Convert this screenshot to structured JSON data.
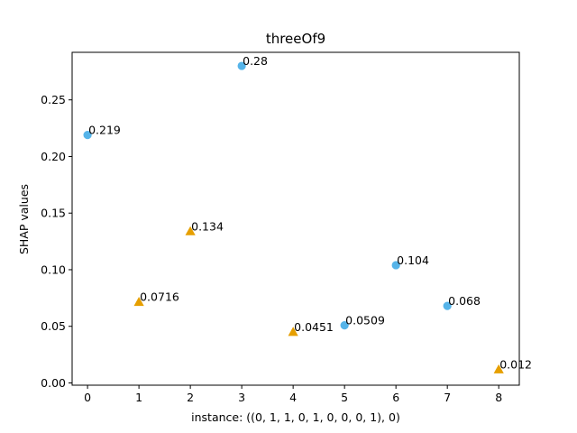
{
  "chart_data": {
    "type": "scatter",
    "title": "threeOf9",
    "xlabel": "instance: ((0, 1, 1, 0, 1, 0, 0, 0, 1), 0)",
    "ylabel": "SHAP values",
    "xlim": [
      -0.3,
      8.4
    ],
    "ylim": [
      -0.002,
      0.292
    ],
    "xticks": [
      0,
      1,
      2,
      3,
      4,
      5,
      6,
      7,
      8
    ],
    "yticks": [
      0.0,
      0.05,
      0.1,
      0.15,
      0.2,
      0.25
    ],
    "ytick_labels": [
      "0.00",
      "0.05",
      "0.10",
      "0.15",
      "0.20",
      "0.25"
    ],
    "grid": false,
    "points": [
      {
        "x": 0,
        "y": 0.219,
        "label": "0.219",
        "marker": "circle",
        "color": "#56b4e9"
      },
      {
        "x": 1,
        "y": 0.0716,
        "label": "0.0716",
        "marker": "triangle",
        "color": "#e69f00"
      },
      {
        "x": 2,
        "y": 0.134,
        "label": "0.134",
        "marker": "triangle",
        "color": "#e69f00"
      },
      {
        "x": 3,
        "y": 0.28,
        "label": "0.28",
        "marker": "circle",
        "color": "#56b4e9"
      },
      {
        "x": 4,
        "y": 0.0451,
        "label": "0.0451",
        "marker": "triangle",
        "color": "#e69f00"
      },
      {
        "x": 5,
        "y": 0.0509,
        "label": "0.0509",
        "marker": "circle",
        "color": "#56b4e9"
      },
      {
        "x": 6,
        "y": 0.104,
        "label": "0.104",
        "marker": "circle",
        "color": "#56b4e9"
      },
      {
        "x": 7,
        "y": 0.068,
        "label": "0.068",
        "marker": "circle",
        "color": "#56b4e9"
      },
      {
        "x": 8,
        "y": 0.012,
        "label": "0.012",
        "marker": "triangle",
        "color": "#e69f00"
      }
    ]
  }
}
